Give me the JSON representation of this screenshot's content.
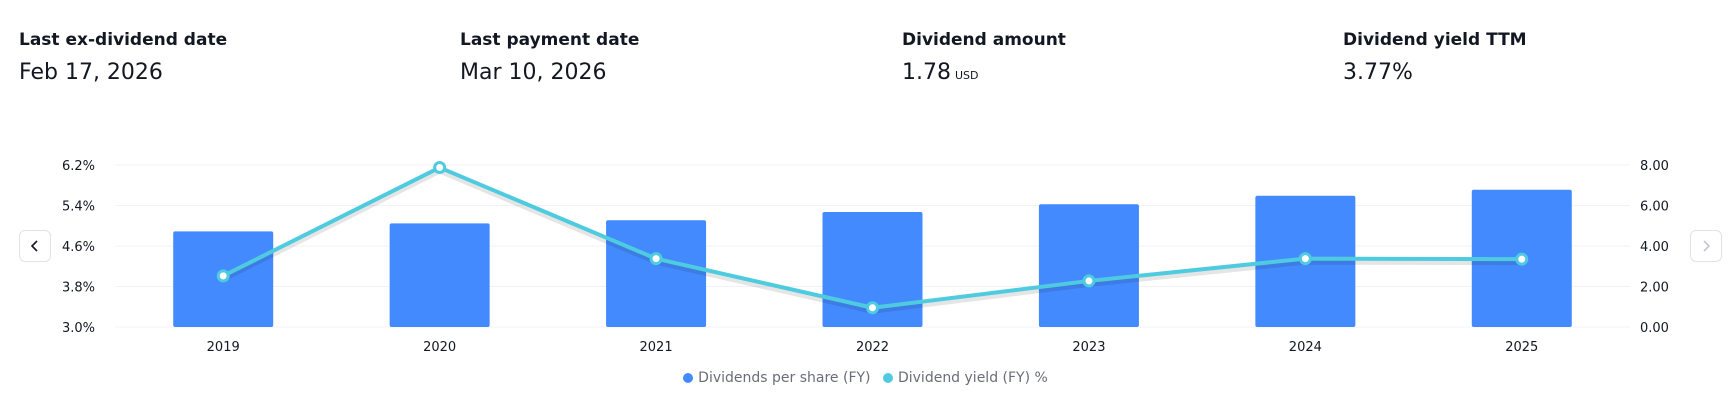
{
  "stats": [
    {
      "label": "Last ex-dividend date",
      "value": "Feb 17, 2026",
      "unit": ""
    },
    {
      "label": "Last payment date",
      "value": "Mar 10, 2026",
      "unit": ""
    },
    {
      "label": "Dividend amount",
      "value": "1.78",
      "unit": "USD"
    },
    {
      "label": "Dividend yield TTM",
      "value": "3.77%",
      "unit": ""
    }
  ],
  "nav": {
    "prev_icon": "chevron-left-icon",
    "next_icon": "chevron-right-icon"
  },
  "colors": {
    "bars": "#448aff",
    "line": "#4fcbdf",
    "grid": "#f0f3fa",
    "text": "#131722",
    "muted": "#6a6d78"
  },
  "chart_data": {
    "type": "bar",
    "categories": [
      "2019",
      "2020",
      "2021",
      "2022",
      "2023",
      "2024",
      "2025"
    ],
    "series": [
      {
        "name": "Dividends per share (FY)",
        "type": "bar",
        "axis": "right",
        "values": [
          4.72,
          5.12,
          5.27,
          5.68,
          6.06,
          6.48,
          6.78
        ]
      },
      {
        "name": "Dividend yield (FY) %",
        "type": "line",
        "axis": "left",
        "values": [
          4.01,
          6.15,
          4.35,
          3.38,
          3.91,
          4.35,
          4.34
        ]
      }
    ],
    "left_axis": {
      "ticks": [
        "3.0%",
        "3.8%",
        "4.6%",
        "5.4%",
        "6.2%"
      ],
      "range": [
        3.0,
        6.2
      ]
    },
    "right_axis": {
      "ticks": [
        "0.00",
        "2.00",
        "4.00",
        "6.00",
        "8.00"
      ],
      "range": [
        0,
        8
      ]
    },
    "grid": true,
    "legend_position": "bottom"
  }
}
